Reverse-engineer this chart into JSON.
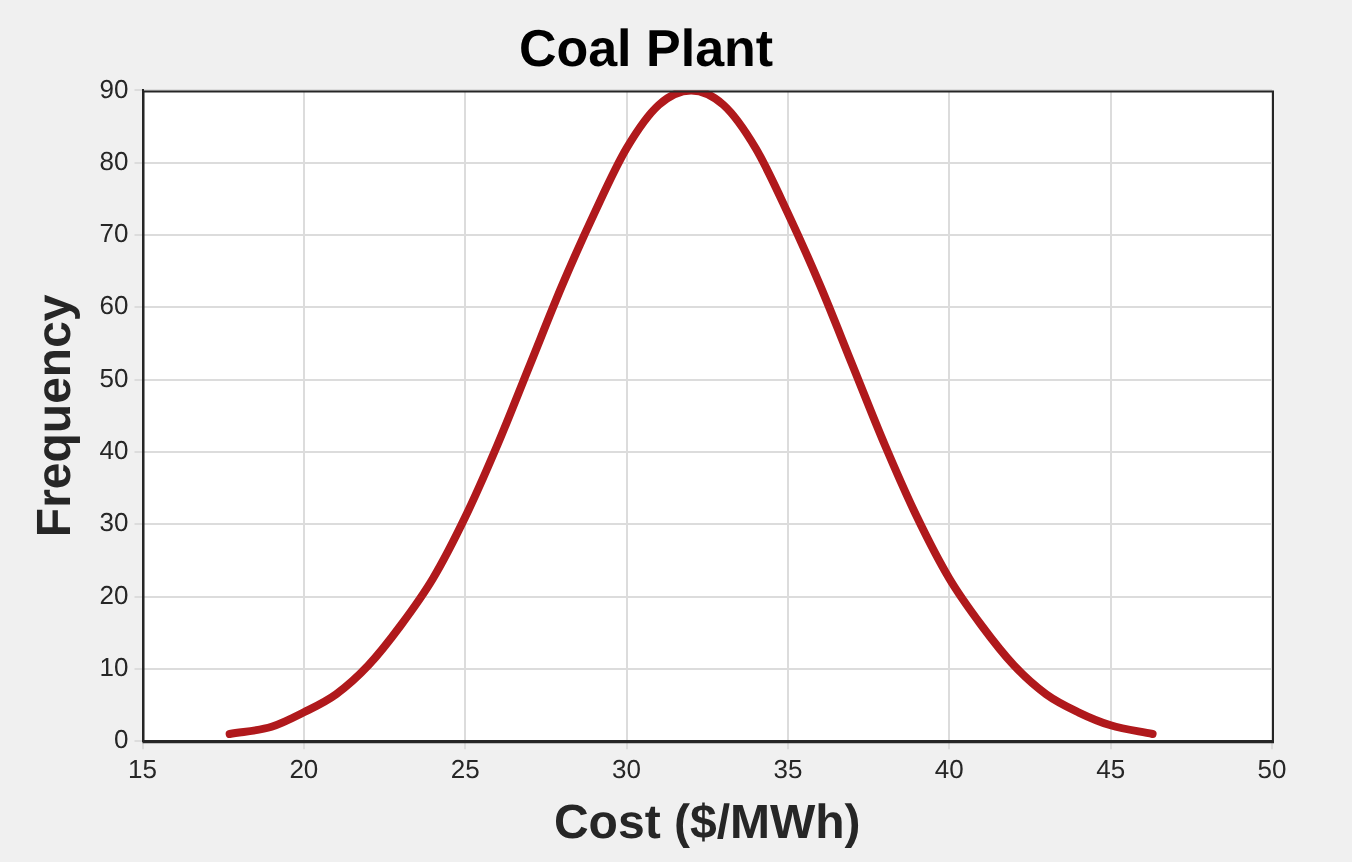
{
  "chart_data": {
    "type": "line",
    "title": "Coal Plant",
    "xlabel": "Cost ($/MWh)",
    "ylabel": "Frequency",
    "x": [
      17.7,
      19,
      20,
      21,
      22,
      23,
      24,
      25,
      26,
      27,
      28,
      29,
      30,
      31,
      32,
      33,
      34,
      35,
      36,
      37,
      38,
      39,
      40,
      41,
      42,
      43,
      44,
      45,
      46.3
    ],
    "series": [
      {
        "color": "#b0191c",
        "values": [
          1,
          2,
          4,
          6.5,
          10.5,
          16,
          22.5,
          31,
          41,
          52,
          63,
          73,
          82,
          88,
          90,
          88,
          82,
          73,
          63,
          52,
          41,
          31,
          22.5,
          16,
          10.5,
          6.5,
          4,
          2.2,
          1
        ]
      }
    ],
    "xlim": [
      15,
      50
    ],
    "xticks": [
      15,
      20,
      25,
      30,
      35,
      40,
      45,
      50
    ],
    "ylim": [
      0,
      90
    ],
    "yticks": [
      0,
      10,
      20,
      30,
      40,
      50,
      60,
      70,
      80,
      90
    ],
    "grid": true,
    "legend": false,
    "marker": "none",
    "line_style": "solid"
  }
}
